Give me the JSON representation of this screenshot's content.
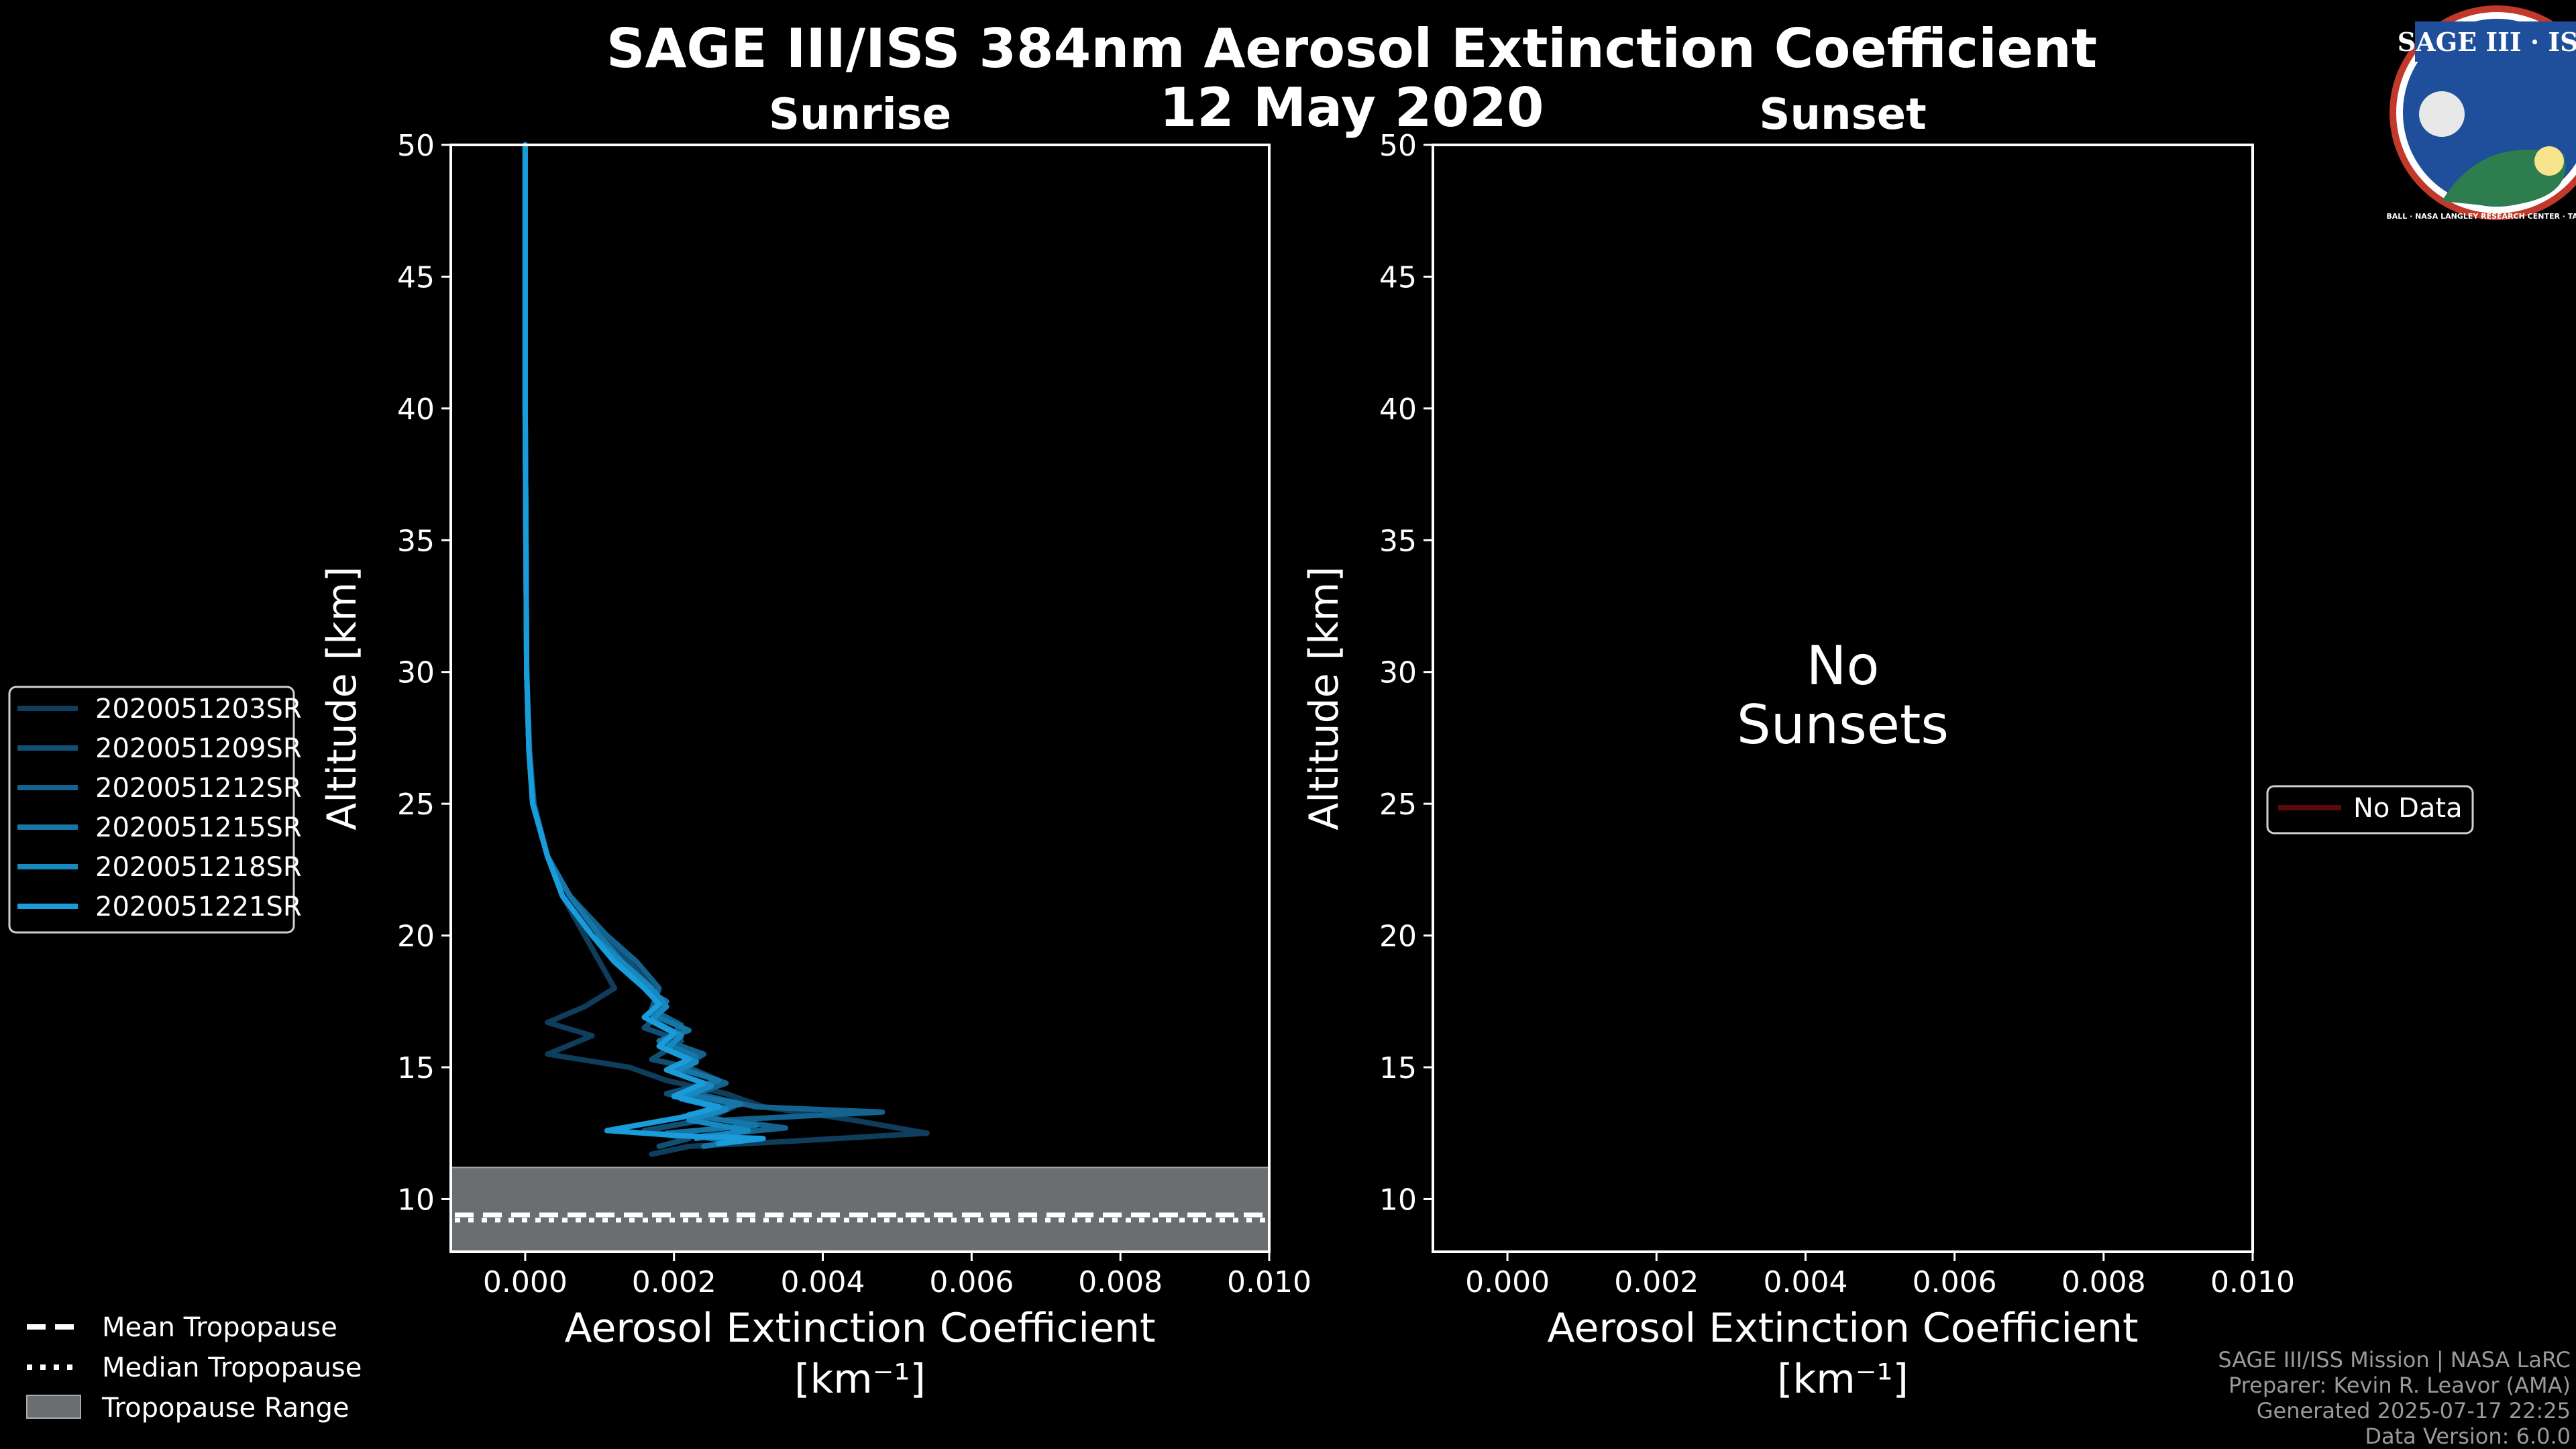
{
  "title_line1": "SAGE III/ISS 384nm Aerosol Extinction Coefficient",
  "title_line2": "12 May 2020",
  "logo": {
    "text": "SAGE III · ISS",
    "ring_text": "BALL · NASA LANGLEY RESEARCH CENTER · TAS · ESA",
    "colors": {
      "ring": "#c0392b",
      "sky": "#1f4f9a",
      "earth": "#2e7d4f"
    }
  },
  "colors": {
    "background": "#000000",
    "axes": "#ffffff",
    "tropopause_band": "#6b6e70",
    "no_data": "#5a0a0a"
  },
  "chart_data": [
    {
      "type": "line",
      "panel": "sunrise",
      "title": "Sunrise",
      "xlabel_line1": "Aerosol Extinction Coefficient",
      "xlabel_line2": "[km⁻¹]",
      "ylabel": "Altitude [km]",
      "xlim": [
        -0.001,
        0.01
      ],
      "ylim": [
        8,
        50
      ],
      "xticks": [
        0.0,
        0.002,
        0.004,
        0.006,
        0.008,
        0.01
      ],
      "xtick_labels": [
        "0.000",
        "0.002",
        "0.004",
        "0.006",
        "0.008",
        "0.010"
      ],
      "yticks": [
        10,
        15,
        20,
        25,
        30,
        35,
        40,
        45,
        50
      ],
      "tropopause": {
        "mean": 9.4,
        "median": 9.2,
        "range": [
          8,
          11.2
        ]
      },
      "series": [
        {
          "name": "2020051203SR",
          "color": "#0f3d5c",
          "points": [
            [
              0.0,
              50
            ],
            [
              0.0,
              45
            ],
            [
              0.0,
              40
            ],
            [
              1e-05,
              35
            ],
            [
              2e-05,
              30
            ],
            [
              5e-05,
              27
            ],
            [
              0.0001,
              25
            ],
            [
              0.0003,
              23
            ],
            [
              0.0005,
              21.5
            ],
            [
              0.0008,
              20
            ],
            [
              0.001,
              19
            ],
            [
              0.0012,
              18
            ],
            [
              0.0008,
              17.3
            ],
            [
              0.0003,
              16.7
            ],
            [
              0.0009,
              16.2
            ],
            [
              0.0003,
              15.5
            ],
            [
              0.0014,
              15
            ],
            [
              0.0019,
              14.5
            ],
            [
              0.0027,
              14
            ],
            [
              0.0032,
              13.5
            ],
            [
              0.0044,
              13
            ],
            [
              0.0054,
              12.5
            ],
            [
              0.0036,
              12.2
            ],
            [
              0.0022,
              12
            ],
            [
              0.0017,
              11.7
            ]
          ]
        },
        {
          "name": "2020051209SR",
          "color": "#115075",
          "points": [
            [
              0.0,
              50
            ],
            [
              0.0,
              45
            ],
            [
              0.0,
              40
            ],
            [
              1e-05,
              35
            ],
            [
              2e-05,
              30
            ],
            [
              6e-05,
              27
            ],
            [
              0.00012,
              25
            ],
            [
              0.0003,
              23
            ],
            [
              0.0006,
              21.5
            ],
            [
              0.001,
              20
            ],
            [
              0.0014,
              19
            ],
            [
              0.0017,
              18
            ],
            [
              0.0018,
              17
            ],
            [
              0.0016,
              16.5
            ],
            [
              0.0021,
              16
            ],
            [
              0.0017,
              15.3
            ],
            [
              0.0022,
              15
            ],
            [
              0.0026,
              14.5
            ],
            [
              0.0019,
              14
            ],
            [
              0.0028,
              13.5
            ],
            [
              0.0024,
              13
            ],
            [
              0.0016,
              12.6
            ],
            [
              0.0022,
              12.3
            ],
            [
              0.0018,
              12
            ]
          ]
        },
        {
          "name": "2020051212SR",
          "color": "#13638e",
          "points": [
            [
              0.0,
              50
            ],
            [
              0.0,
              45
            ],
            [
              0.0,
              40
            ],
            [
              1e-05,
              35
            ],
            [
              2e-05,
              30
            ],
            [
              5e-05,
              27
            ],
            [
              0.00011,
              25
            ],
            [
              0.0003,
              23
            ],
            [
              0.0006,
              21.5
            ],
            [
              0.0011,
              20
            ],
            [
              0.0015,
              19
            ],
            [
              0.0018,
              18
            ],
            [
              0.0017,
              17.2
            ],
            [
              0.0021,
              16.6
            ],
            [
              0.0019,
              16
            ],
            [
              0.0024,
              15.5
            ],
            [
              0.0021,
              15
            ],
            [
              0.0027,
              14.4
            ],
            [
              0.0023,
              14
            ],
            [
              0.0031,
              13.5
            ],
            [
              0.0048,
              13.3
            ],
            [
              0.0027,
              13
            ],
            [
              0.0035,
              12.7
            ],
            [
              0.0024,
              12.4
            ]
          ]
        },
        {
          "name": "2020051215SR",
          "color": "#1576a7",
          "points": [
            [
              0.0,
              50
            ],
            [
              0.0,
              45
            ],
            [
              0.0,
              40
            ],
            [
              1e-05,
              35
            ],
            [
              2e-05,
              30
            ],
            [
              5e-05,
              27
            ],
            [
              0.0001,
              25
            ],
            [
              0.0003,
              23
            ],
            [
              0.0006,
              21.5
            ],
            [
              0.001,
              20
            ],
            [
              0.0013,
              19
            ],
            [
              0.0016,
              18
            ],
            [
              0.0019,
              17.5
            ],
            [
              0.0017,
              17
            ],
            [
              0.0022,
              16.4
            ],
            [
              0.0018,
              16
            ],
            [
              0.0023,
              15.4
            ],
            [
              0.002,
              15
            ],
            [
              0.0026,
              14.5
            ],
            [
              0.0021,
              14
            ],
            [
              0.0029,
              13.6
            ],
            [
              0.0022,
              13.2
            ],
            [
              0.0031,
              12.8
            ],
            [
              0.0019,
              12.5
            ],
            [
              0.0028,
              12.2
            ],
            [
              0.0024,
              12
            ]
          ]
        },
        {
          "name": "2020051218SR",
          "color": "#1789c0",
          "points": [
            [
              0.0,
              50
            ],
            [
              0.0,
              45
            ],
            [
              0.0,
              40
            ],
            [
              1e-05,
              35
            ],
            [
              2e-05,
              30
            ],
            [
              5e-05,
              27
            ],
            [
              0.0001,
              25
            ],
            [
              0.0003,
              23
            ],
            [
              0.0005,
              21.5
            ],
            [
              0.0009,
              20
            ],
            [
              0.0013,
              19
            ],
            [
              0.0017,
              18
            ],
            [
              0.0019,
              17.3
            ],
            [
              0.0017,
              16.8
            ],
            [
              0.0021,
              16.2
            ],
            [
              0.0019,
              15.7
            ],
            [
              0.0023,
              15.2
            ],
            [
              0.002,
              14.8
            ],
            [
              0.0025,
              14.3
            ],
            [
              0.0021,
              13.8
            ],
            [
              0.0027,
              13.4
            ],
            [
              0.0022,
              13
            ],
            [
              0.003,
              12.6
            ],
            [
              0.0023,
              12.3
            ]
          ]
        },
        {
          "name": "2020051221SR",
          "color": "#199cd9",
          "points": [
            [
              0.0,
              50
            ],
            [
              0.0,
              45
            ],
            [
              0.0,
              40
            ],
            [
              1e-05,
              35
            ],
            [
              2e-05,
              30
            ],
            [
              5e-05,
              27
            ],
            [
              0.0001,
              25
            ],
            [
              0.0003,
              23
            ],
            [
              0.0005,
              21.5
            ],
            [
              0.0009,
              20
            ],
            [
              0.0012,
              19
            ],
            [
              0.0016,
              18
            ],
            [
              0.0018,
              17.4
            ],
            [
              0.0016,
              16.9
            ],
            [
              0.002,
              16.3
            ],
            [
              0.0018,
              15.8
            ],
            [
              0.0022,
              15.3
            ],
            [
              0.0019,
              14.9
            ],
            [
              0.0024,
              14.4
            ],
            [
              0.002,
              13.9
            ],
            [
              0.0026,
              13.5
            ],
            [
              0.0021,
              13.1
            ],
            [
              0.0011,
              12.6
            ],
            [
              0.0021,
              12.4
            ],
            [
              0.0032,
              12.3
            ],
            [
              0.0026,
              12.1
            ]
          ]
        }
      ],
      "legend": [
        "2020051203SR",
        "2020051209SR",
        "2020051212SR",
        "2020051215SR",
        "2020051218SR",
        "2020051221SR"
      ]
    },
    {
      "type": "line",
      "panel": "sunset",
      "title": "Sunset",
      "xlabel_line1": "Aerosol Extinction Coefficient",
      "xlabel_line2": "[km⁻¹]",
      "ylabel": "Altitude [km]",
      "xlim": [
        -0.001,
        0.01
      ],
      "ylim": [
        8,
        50
      ],
      "xticks": [
        0.0,
        0.002,
        0.004,
        0.006,
        0.008,
        0.01
      ],
      "xtick_labels": [
        "0.000",
        "0.002",
        "0.004",
        "0.006",
        "0.008",
        "0.010"
      ],
      "yticks": [
        10,
        15,
        20,
        25,
        30,
        35,
        40,
        45,
        50
      ],
      "annotation": [
        "No",
        "Sunsets"
      ],
      "series": [],
      "legend": [
        "No Data"
      ]
    }
  ],
  "tropopause_legend": [
    "Mean Tropopause",
    "Median Tropopause",
    "Tropopause Range"
  ],
  "credits": [
    "SAGE III/ISS Mission | NASA LaRC",
    "Preparer: Kevin R. Leavor (AMA)",
    "Generated 2025-07-17 22:25",
    "Data Version: 6.0.0"
  ]
}
